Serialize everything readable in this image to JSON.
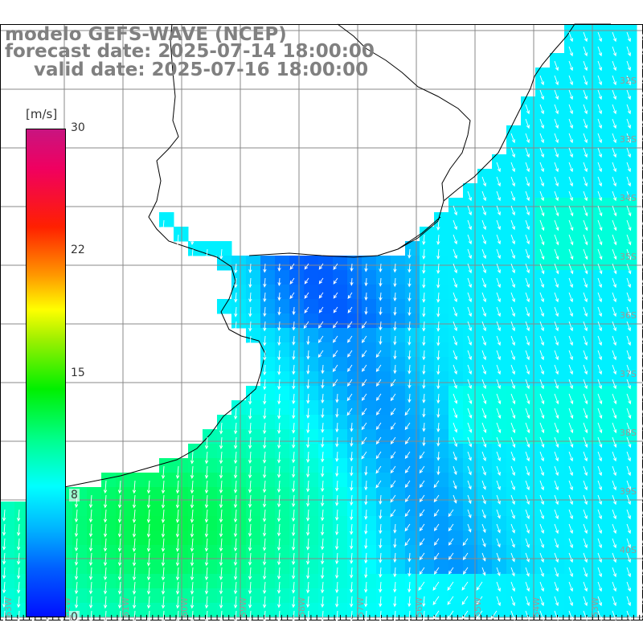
{
  "title": {
    "model": "modelo GEFS-WAVE (NCEP)",
    "forecast_date": "forecast date: 2025-07-14 18:00:00",
    "valid_date": "valid date: 2025-07-16 18:00:00"
  },
  "colorbar": {
    "unit": "[m/s]",
    "ticks": [
      "30",
      "22",
      "15",
      "8",
      "0"
    ],
    "colors": [
      "#0010ff",
      "#0060ff",
      "#00b4ff",
      "#00ffff",
      "#00ff90",
      "#00f000",
      "#a0f000",
      "#ffff00",
      "#ff9900",
      "#ff2000",
      "#c81480"
    ]
  },
  "map": {
    "latitude_labels": [
      "32S",
      "33S",
      "34S",
      "35S",
      "36S",
      "37S",
      "38S",
      "39S",
      "40S"
    ],
    "longitude_labels": [
      "63W",
      "62W",
      "61W",
      "60W",
      "59W",
      "58W",
      "57W",
      "56W",
      "55W",
      "54W",
      "53W"
    ],
    "land_color": "#ffffff",
    "grid_color": "#888888",
    "coast_color": "#000000",
    "arrow_color": "#ffffff"
  }
}
